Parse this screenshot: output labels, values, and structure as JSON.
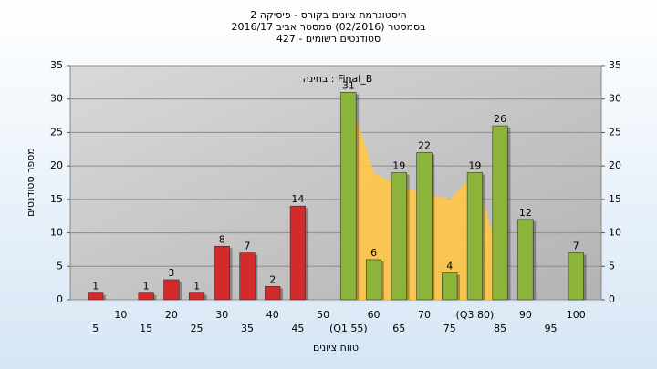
{
  "chart_data": {
    "type": "bar",
    "title": [
      "היסטוגרמת ציונים בקורס - פיסיקה 2",
      "בסמסטר  (02/2016)  סמסטר אביב 2016/17",
      "סטודנטים רשומים - 427"
    ],
    "annotation": "בחינה : Final_B",
    "x_label": "טווח ציונים",
    "y_label": "מספר סטודנטים",
    "categories": [
      "5",
      "10",
      "15",
      "20",
      "25",
      "30",
      "35",
      "40",
      "45",
      "50",
      "(Q1 55)",
      "60",
      "65",
      "70",
      "75",
      "(Q3 80)",
      "85",
      "90",
      "95",
      "100"
    ],
    "values": [
      1,
      null,
      1,
      3,
      1,
      8,
      7,
      2,
      14,
      null,
      31,
      6,
      19,
      22,
      4,
      19,
      26,
      12,
      null,
      7
    ],
    "bar_colors": [
      "#d42a2a",
      "#d42a2a",
      "#d42a2a",
      "#d42a2a",
      "#d42a2a",
      "#d42a2a",
      "#d42a2a",
      "#d42a2a",
      "#d42a2a",
      "#d42a2a",
      "#8db43a",
      "#8db43a",
      "#8db43a",
      "#8db43a",
      "#8db43a",
      "#8db43a",
      "#8db43a",
      "#8db43a",
      "#8db43a",
      "#8db43a"
    ],
    "area": {
      "color": "#ffc845",
      "values": [
        null,
        null,
        null,
        null,
        null,
        null,
        null,
        null,
        null,
        null,
        31,
        19,
        17,
        16,
        15,
        19,
        6,
        null,
        null,
        null
      ]
    },
    "ylim": [
      0,
      35
    ],
    "yticks": [
      0,
      5,
      10,
      15,
      20,
      25,
      30,
      35
    ],
    "y2lim": [
      0,
      35
    ],
    "y2ticks": [
      0,
      5,
      10,
      15,
      20,
      25,
      30,
      35
    ],
    "grid": true
  }
}
